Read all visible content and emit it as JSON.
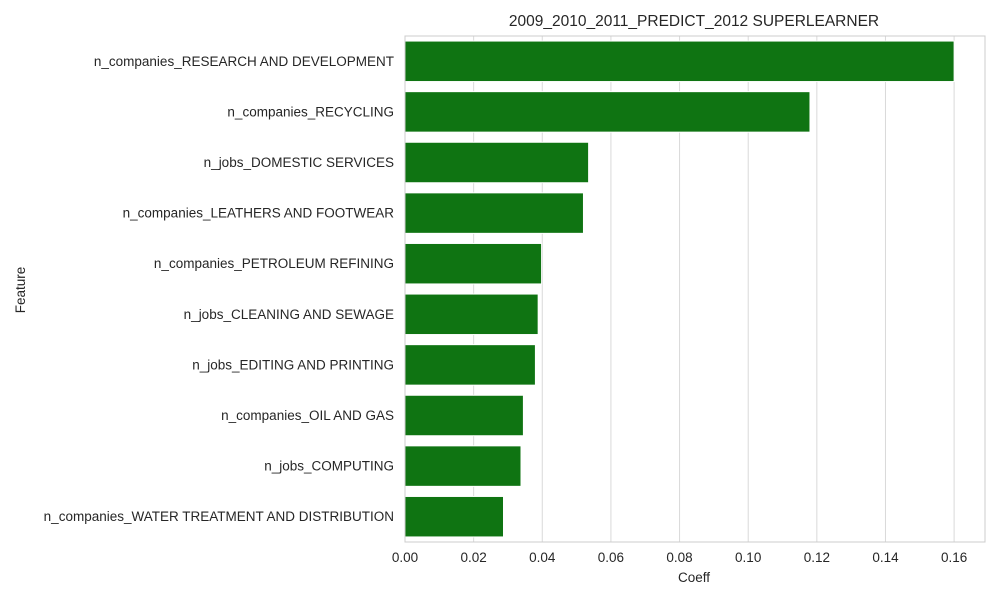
{
  "colors": {
    "bar_fill": "#0f7412",
    "bar_edge": "#ffffff",
    "grid": "#d9d9d9",
    "spine": "#cccccc",
    "text": "#262626"
  },
  "chart_data": {
    "type": "bar",
    "orientation": "horizontal",
    "title": "2009_2010_2011_PREDICT_2012 SUPERLEARNER",
    "xlabel": "Coeff",
    "ylabel": "Feature",
    "categories": [
      "n_companies_RESEARCH AND DEVELOPMENT",
      "n_companies_RECYCLING",
      "n_jobs_DOMESTIC SERVICES",
      "n_companies_LEATHERS AND FOOTWEAR",
      "n_companies_PETROLEUM REFINING",
      "n_jobs_CLEANING AND SEWAGE",
      "n_jobs_EDITING AND PRINTING",
      "n_companies_OIL AND GAS",
      "n_jobs_COMPUTING",
      "n_companies_WATER TREATMENT AND DISTRIBUTION"
    ],
    "values": [
      0.16,
      0.118,
      0.0535,
      0.052,
      0.0398,
      0.0388,
      0.038,
      0.0345,
      0.0338,
      0.0287
    ],
    "xlim": [
      0.0,
      0.169
    ],
    "xticks": [
      0.0,
      0.02,
      0.04,
      0.06,
      0.08,
      0.1,
      0.12,
      0.14,
      0.16
    ],
    "xtick_labels": [
      "0.00",
      "0.02",
      "0.04",
      "0.06",
      "0.08",
      "0.10",
      "0.12",
      "0.14",
      "0.16"
    ],
    "grid": "vertical",
    "legend": "none"
  }
}
